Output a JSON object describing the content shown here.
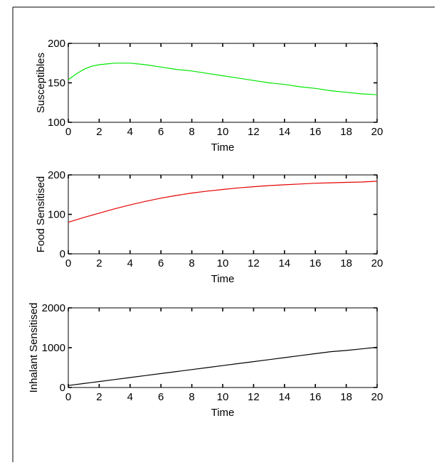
{
  "chart_data": [
    {
      "type": "line",
      "ylabel": "Susceptibles",
      "xlabel": "Time",
      "xlim": [
        0,
        20
      ],
      "ylim": [
        100,
        200
      ],
      "xticks": [
        0,
        2,
        4,
        6,
        8,
        10,
        12,
        14,
        16,
        18,
        20
      ],
      "yticks": [
        100,
        150,
        200
      ],
      "grid": false,
      "series": [
        {
          "color": "#00e600",
          "x": [
            0,
            0.5,
            1,
            1.5,
            2,
            2.5,
            3,
            3.5,
            4,
            4.5,
            5,
            6,
            7,
            8,
            9,
            10,
            11,
            12,
            13,
            14,
            15,
            16,
            17,
            18,
            19,
            20
          ],
          "y": [
            154,
            161,
            167,
            171,
            173,
            174,
            175,
            175,
            175,
            174,
            173,
            170,
            167,
            165,
            162,
            159,
            156,
            153,
            150,
            148,
            145,
            143,
            140,
            138,
            136,
            135
          ]
        }
      ]
    },
    {
      "type": "line",
      "ylabel": "Food Sensitised",
      "xlabel": "Time",
      "xlim": [
        0,
        20
      ],
      "ylim": [
        0,
        200
      ],
      "xticks": [
        0,
        2,
        4,
        6,
        8,
        10,
        12,
        14,
        16,
        18,
        20
      ],
      "yticks": [
        0,
        100,
        200
      ],
      "grid": false,
      "series": [
        {
          "color": "#e60000",
          "x": [
            0,
            1,
            2,
            3,
            4,
            5,
            6,
            7,
            8,
            9,
            10,
            11,
            12,
            13,
            14,
            15,
            16,
            17,
            18,
            19,
            20
          ],
          "y": [
            80,
            92,
            103,
            114,
            124,
            133,
            141,
            148,
            154,
            159,
            163,
            167,
            170,
            173,
            175,
            177,
            179,
            180,
            181,
            182,
            184
          ]
        }
      ]
    },
    {
      "type": "line",
      "ylabel": "Inhalant Sensitised",
      "xlabel": "Time",
      "xlim": [
        0,
        20
      ],
      "ylim": [
        0,
        2000
      ],
      "xticks": [
        0,
        2,
        4,
        6,
        8,
        10,
        12,
        14,
        16,
        18,
        20
      ],
      "yticks": [
        0,
        1000,
        2000
      ],
      "grid": false,
      "series": [
        {
          "color": "#000000",
          "x": [
            0,
            1,
            2,
            3,
            4,
            5,
            6,
            7,
            8,
            9,
            10,
            11,
            12,
            13,
            14,
            15,
            16,
            17,
            18,
            19,
            20
          ],
          "y": [
            50,
            100,
            150,
            200,
            250,
            300,
            350,
            400,
            450,
            500,
            550,
            600,
            650,
            700,
            750,
            800,
            850,
            900,
            930,
            970,
            1010
          ]
        }
      ]
    }
  ]
}
